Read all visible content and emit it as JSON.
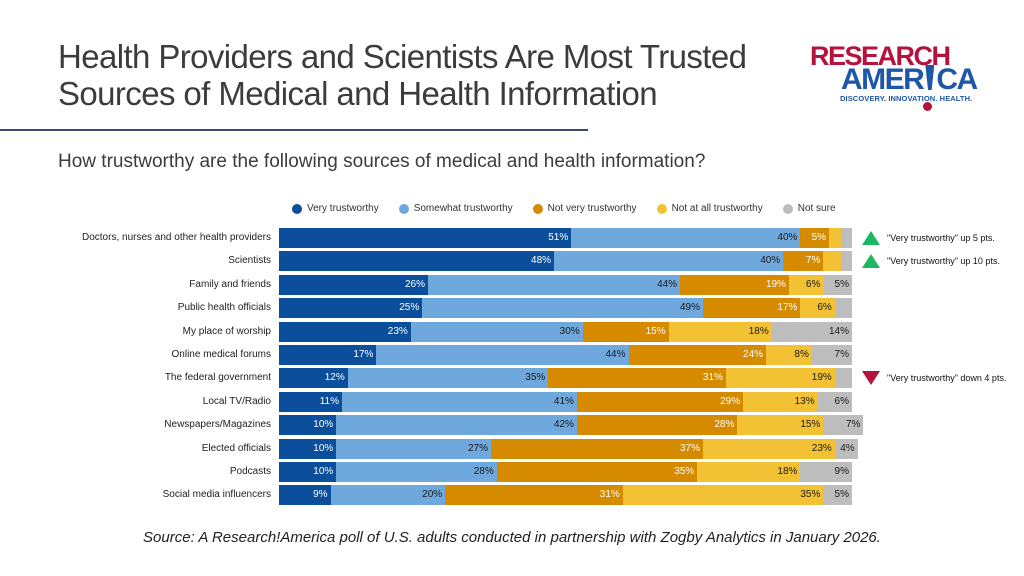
{
  "title": "Health Providers and Scientists Are Most Trusted Sources of Medical and Health Information",
  "subtitle": "How trustworthy are the following sources of medical and health information?",
  "logo": {
    "line1": "RESEARCH",
    "line2a": "AMER",
    "line2b": "CA",
    "tagline": "DISCOVERY. INNOVATION. HEALTH."
  },
  "source": "Source: A Research!America poll of U.S. adults conducted in partnership with Zogby Analytics in January 2026.",
  "chart_data": {
    "type": "bar",
    "orientation": "horizontal-stacked-100",
    "xlim": [
      0,
      100
    ],
    "grid": false,
    "legend_position": "top",
    "categories": [
      "Doctors, nurses and other health providers",
      "Scientists",
      "Family and friends",
      "Public health officials",
      "My place of worship",
      "Online medical forums",
      "The federal government",
      "Local TV/Radio",
      "Newspapers/Magazines",
      "Elected officials",
      "Podcasts",
      "Social media influencers"
    ],
    "series": [
      {
        "name": "Very trustworthy",
        "color": "#0b4f9c",
        "label_color": "#ffffff",
        "values": [
          51,
          48,
          26,
          25,
          23,
          17,
          12,
          11,
          10,
          10,
          10,
          9
        ]
      },
      {
        "name": "Somewhat trustworthy",
        "color": "#6fa8dc",
        "label_color": "#1a1a1a",
        "values": [
          40,
          40,
          44,
          49,
          30,
          44,
          35,
          41,
          42,
          27,
          28,
          20
        ]
      },
      {
        "name": "Not very trustworthy",
        "color": "#d58a00",
        "label_color": "#ffffff",
        "values": [
          5,
          7,
          19,
          17,
          15,
          24,
          31,
          29,
          28,
          37,
          35,
          31
        ]
      },
      {
        "name": "Not at all trustworthy",
        "color": "#f2c234",
        "label_color": "#1a1a1a",
        "values": [
          2,
          3,
          6,
          6,
          18,
          8,
          19,
          13,
          15,
          23,
          18,
          35
        ]
      },
      {
        "name": "Not sure",
        "color": "#bdbdbd",
        "label_color": "#1a1a1a",
        "values": [
          2,
          2,
          5,
          3,
          14,
          7,
          3,
          6,
          7,
          4,
          9,
          5
        ]
      }
    ],
    "annotations": [
      {
        "row": 0,
        "direction": "up",
        "color": "#1db862",
        "text": "\"Very trustworthy\" up 5 pts."
      },
      {
        "row": 1,
        "direction": "up",
        "color": "#1db862",
        "text": "\"Very trustworthy\" up 10 pts."
      },
      {
        "row": 6,
        "direction": "down",
        "color": "#b5123e",
        "text": "\"Very trustworthy\" down 4 pts."
      }
    ]
  }
}
